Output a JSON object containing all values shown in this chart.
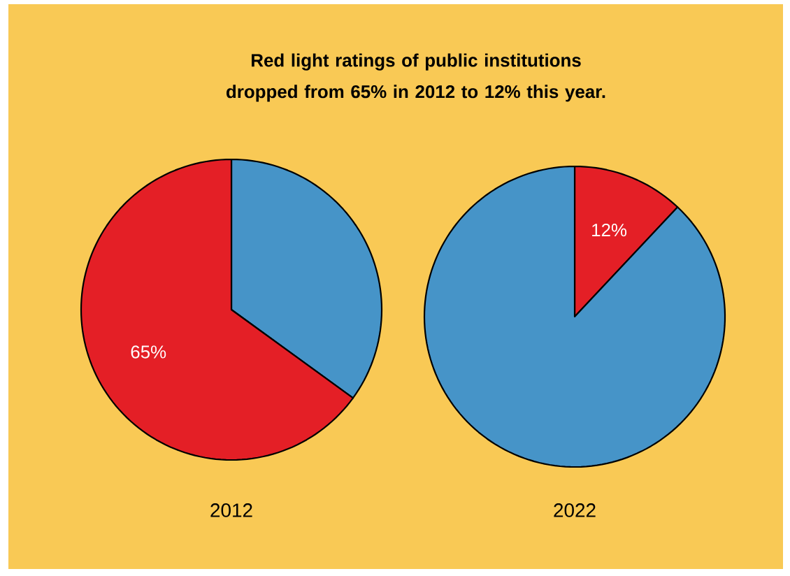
{
  "chart_data": [
    {
      "type": "pie",
      "title": "Red light ratings of public institutions dropped from 65% in 2012 to 12% this year.",
      "categories": [
        null,
        null
      ],
      "values": [
        35,
        65
      ],
      "colors": [
        "#4694c8",
        "#e41f26"
      ],
      "value_labels": [
        null,
        "65%"
      ],
      "xlabel": "2012"
    },
    {
      "type": "pie",
      "categories": [
        null,
        null
      ],
      "values": [
        12,
        88
      ],
      "colors": [
        "#e41f26",
        "#4694c8"
      ],
      "value_labels": [
        "12%",
        null
      ],
      "xlabel": "2022"
    }
  ]
}
